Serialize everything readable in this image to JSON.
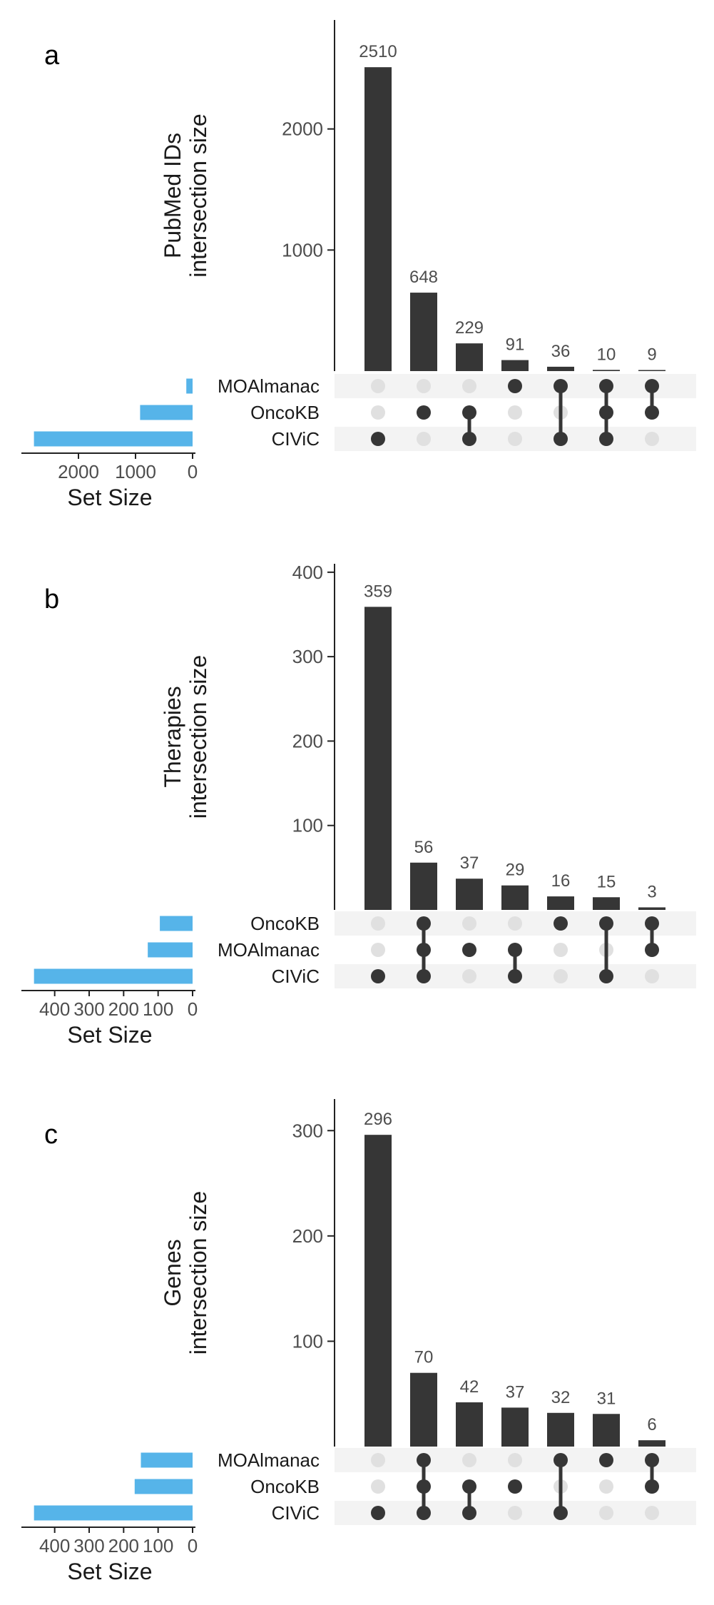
{
  "colors": {
    "bar": "#363636",
    "set_bar": "#56b4e9",
    "dot_active": "#363636",
    "dot_inactive": "#e0e0e0",
    "stripe": "#f3f3f3",
    "axis": "#222222",
    "tick_text": "#4d4d4d",
    "label_text": "#1a1a1a"
  },
  "chart_data": [
    {
      "type": "bar",
      "panel_label": "a",
      "ylabel": [
        "PubMed IDs",
        "intersection size"
      ],
      "ylim": [
        0,
        2900
      ],
      "yticks": [
        1000,
        2000
      ],
      "sets": [
        "MOAlmanac",
        "OncoKB",
        "CIViC"
      ],
      "set_sizes": [
        110,
        920,
        2780
      ],
      "set_size_xlim": [
        2900,
        0
      ],
      "set_size_ticks": [
        2000,
        1000,
        0
      ],
      "xlabel_sets": "Set Size",
      "intersections": [
        {
          "value": 2510,
          "members": [
            "CIViC"
          ]
        },
        {
          "value": 648,
          "members": [
            "OncoKB"
          ]
        },
        {
          "value": 229,
          "members": [
            "OncoKB",
            "CIViC"
          ]
        },
        {
          "value": 91,
          "members": [
            "MOAlmanac"
          ]
        },
        {
          "value": 36,
          "members": [
            "MOAlmanac",
            "CIViC"
          ]
        },
        {
          "value": 10,
          "members": [
            "MOAlmanac",
            "OncoKB",
            "CIViC"
          ]
        },
        {
          "value": 9,
          "members": [
            "MOAlmanac",
            "OncoKB"
          ]
        }
      ]
    },
    {
      "type": "bar",
      "panel_label": "b",
      "ylabel": [
        "Therapies",
        "intersection size"
      ],
      "ylim": [
        0,
        410
      ],
      "yticks": [
        100,
        200,
        300,
        400
      ],
      "sets": [
        "OncoKB",
        "MOAlmanac",
        "CIViC"
      ],
      "set_sizes": [
        95,
        130,
        460
      ],
      "set_size_xlim": [
        480,
        0
      ],
      "set_size_ticks": [
        400,
        300,
        200,
        100,
        0
      ],
      "xlabel_sets": "Set Size",
      "intersections": [
        {
          "value": 359,
          "members": [
            "CIViC"
          ]
        },
        {
          "value": 56,
          "members": [
            "OncoKB",
            "MOAlmanac",
            "CIViC"
          ]
        },
        {
          "value": 37,
          "members": [
            "MOAlmanac"
          ]
        },
        {
          "value": 29,
          "members": [
            "MOAlmanac",
            "CIViC"
          ]
        },
        {
          "value": 16,
          "members": [
            "OncoKB"
          ]
        },
        {
          "value": 15,
          "members": [
            "OncoKB",
            "CIViC"
          ]
        },
        {
          "value": 3,
          "members": [
            "OncoKB",
            "MOAlmanac"
          ]
        }
      ]
    },
    {
      "type": "bar",
      "panel_label": "c",
      "ylabel": [
        "Genes",
        "intersection size"
      ],
      "ylim": [
        0,
        330
      ],
      "yticks": [
        100,
        200,
        300
      ],
      "sets": [
        "MOAlmanac",
        "OncoKB",
        "CIViC"
      ],
      "set_sizes": [
        150,
        168,
        460
      ],
      "set_size_xlim": [
        480,
        0
      ],
      "set_size_ticks": [
        400,
        300,
        200,
        100,
        0
      ],
      "xlabel_sets": "Set Size",
      "intersections": [
        {
          "value": 296,
          "members": [
            "CIViC"
          ]
        },
        {
          "value": 70,
          "members": [
            "MOAlmanac",
            "OncoKB",
            "CIViC"
          ]
        },
        {
          "value": 42,
          "members": [
            "OncoKB",
            "CIViC"
          ]
        },
        {
          "value": 37,
          "members": [
            "OncoKB"
          ]
        },
        {
          "value": 32,
          "members": [
            "MOAlmanac",
            "CIViC"
          ]
        },
        {
          "value": 31,
          "members": [
            "MOAlmanac"
          ]
        },
        {
          "value": 6,
          "members": [
            "MOAlmanac",
            "OncoKB"
          ]
        }
      ]
    }
  ]
}
